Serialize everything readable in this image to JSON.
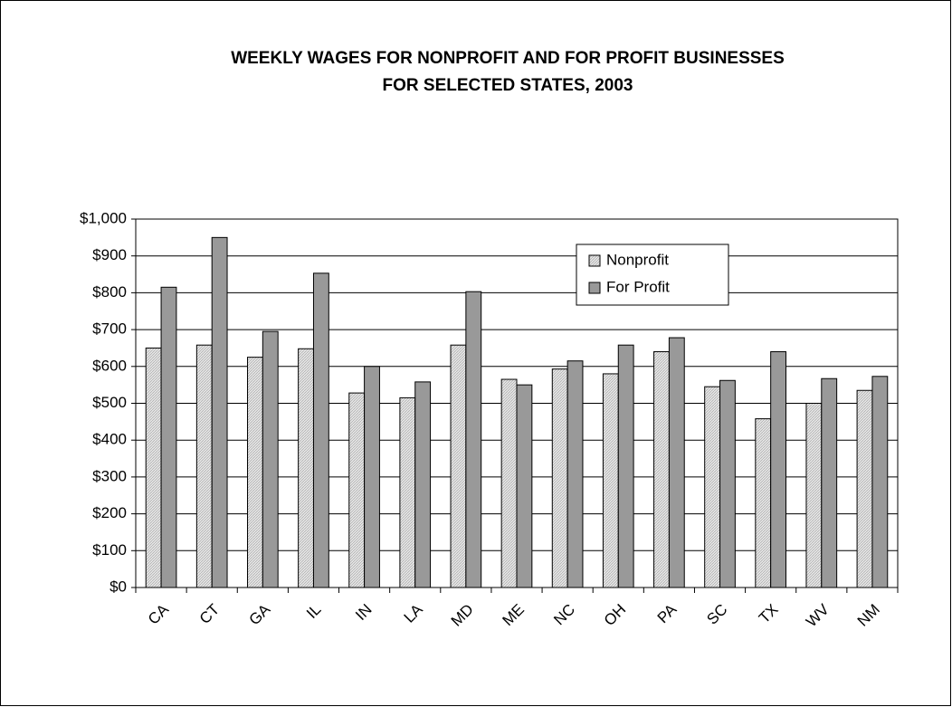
{
  "chart_data": {
    "type": "bar",
    "title": [
      "WEEKLY WAGES FOR NONPROFIT AND FOR PROFIT BUSINESSES",
      "FOR SELECTED STATES, 2003"
    ],
    "categories": [
      "CA",
      "CT",
      "GA",
      "IL",
      "IN",
      "LA",
      "MD",
      "ME",
      "NC",
      "OH",
      "PA",
      "SC",
      "TX",
      "WV",
      "NM"
    ],
    "series": [
      {
        "name": "Nonprofit",
        "color": "#e6e6e6",
        "values": [
          650,
          658,
          625,
          648,
          528,
          515,
          658,
          565,
          593,
          580,
          640,
          545,
          458,
          500,
          535
        ]
      },
      {
        "name": "For Profit",
        "color": "#999999",
        "values": [
          815,
          950,
          695,
          853,
          600,
          558,
          803,
          550,
          615,
          658,
          678,
          562,
          640,
          567,
          573
        ]
      }
    ],
    "ylim": [
      0,
      1000
    ],
    "yticks": [
      {
        "value": 0,
        "label": "$0"
      },
      {
        "value": 100,
        "label": "$100"
      },
      {
        "value": 200,
        "label": "$200"
      },
      {
        "value": 300,
        "label": "$300"
      },
      {
        "value": 400,
        "label": "$400"
      },
      {
        "value": 500,
        "label": "$500"
      },
      {
        "value": 600,
        "label": "$600"
      },
      {
        "value": 700,
        "label": "$700"
      },
      {
        "value": 800,
        "label": "$800"
      },
      {
        "value": 900,
        "label": "$900"
      },
      {
        "value": 1000,
        "label": "$1,000"
      }
    ],
    "grid": true
  }
}
